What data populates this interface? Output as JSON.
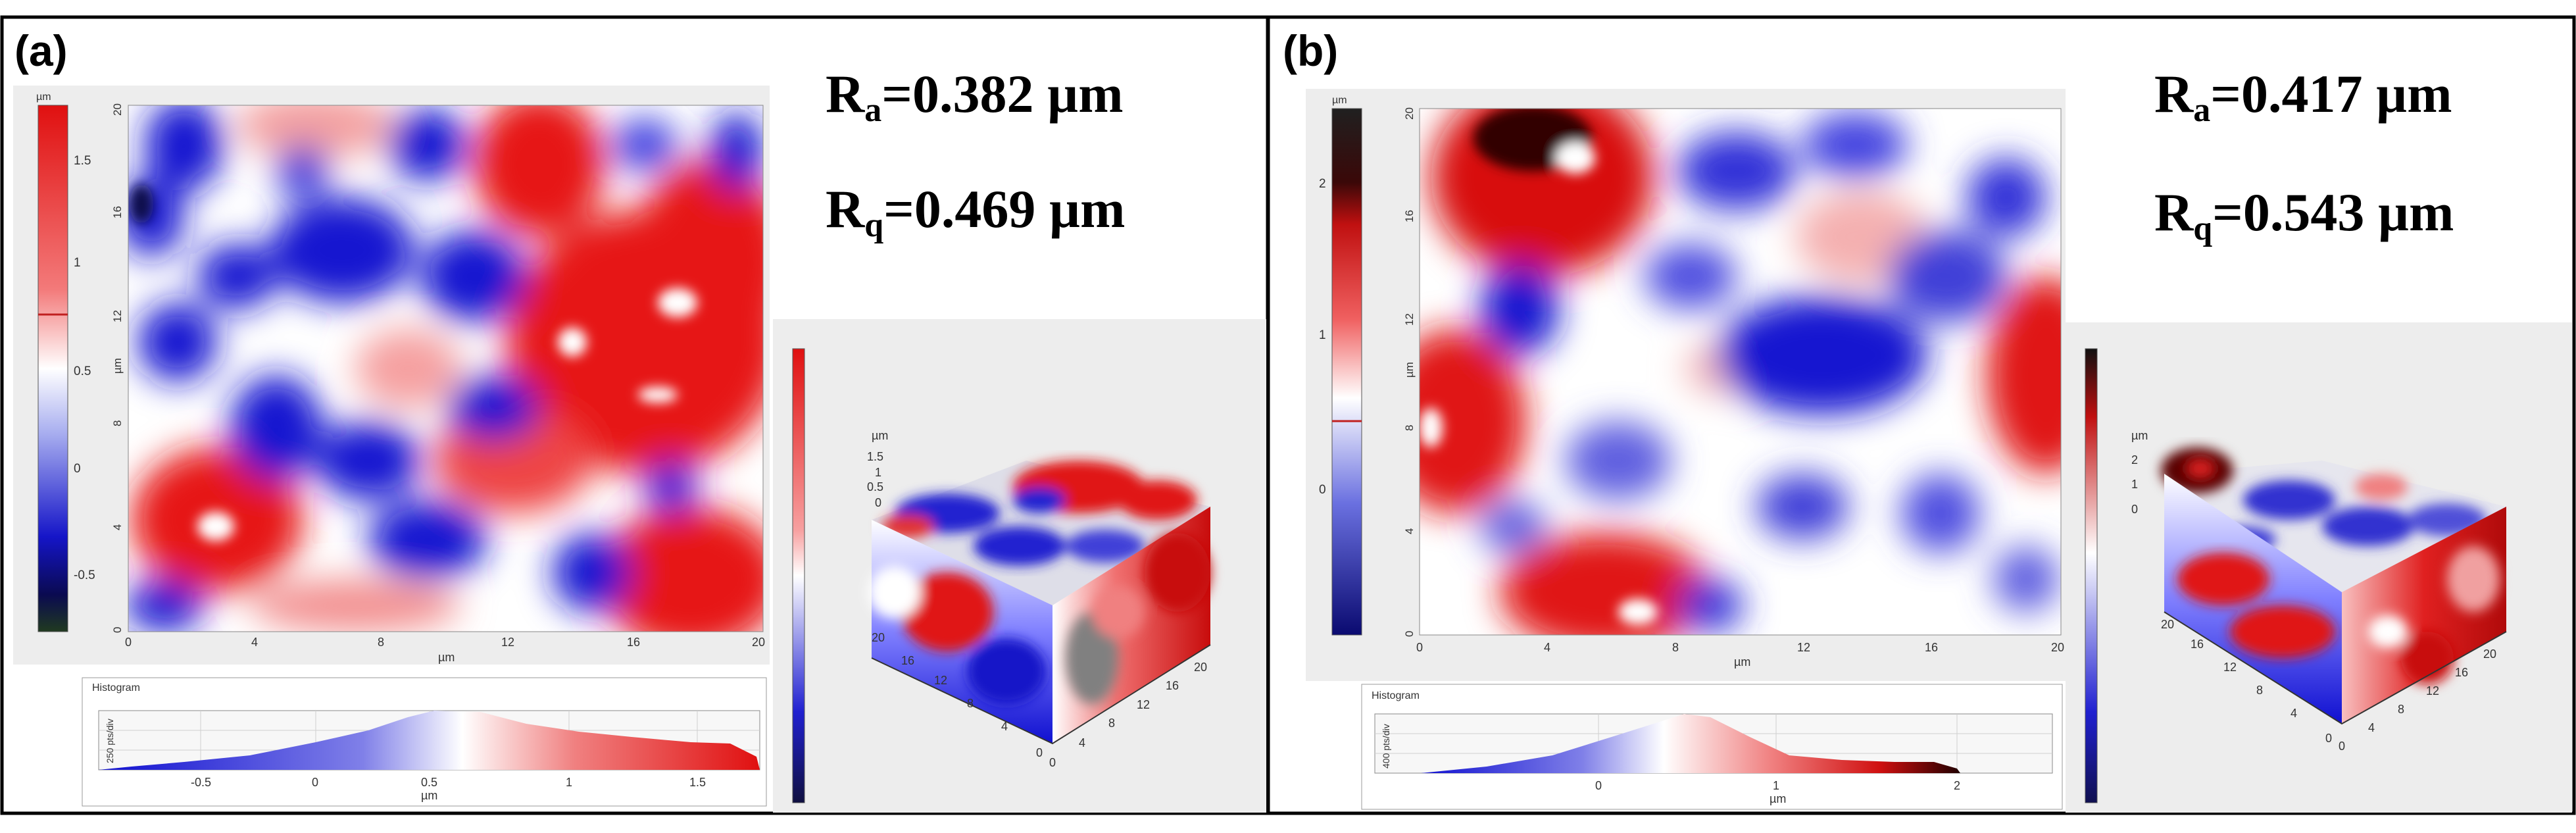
{
  "figure": {
    "panels": [
      {
        "id": "a",
        "label": "(a)",
        "ra_label": "R",
        "ra_sub": "a",
        "ra_value": "=0.382 µm",
        "rq_label": "R",
        "rq_sub": "q",
        "rq_value": "=0.469 µm",
        "colorbar_unit": "µm",
        "colorbar_ticks": [
          "1.5",
          "1",
          "0.5",
          "0",
          "-0.5"
        ],
        "x_axis_ticks": [
          "0",
          "4",
          "8",
          "12",
          "16",
          "20"
        ],
        "y_axis_ticks": [
          "0",
          "4",
          "8",
          "12",
          "16",
          "20"
        ],
        "axis_unit": "µm",
        "histogram_title": "Histogram",
        "histogram_ylabel": "250 pts/div",
        "histogram_ticks": [
          "-0.5",
          "0",
          "0.5",
          "1",
          "1.5"
        ],
        "histogram_unit": "µm",
        "view3d_unit": "µm",
        "view3d_z_ticks": [
          "1.5",
          "1",
          "0.5",
          "0"
        ],
        "view3d_x_ticks": [
          "0",
          "4",
          "8",
          "12",
          "16",
          "20"
        ],
        "view3d_y_ticks": [
          "0",
          "4",
          "8",
          "12",
          "16",
          "20"
        ]
      },
      {
        "id": "b",
        "label": "(b)",
        "ra_label": "R",
        "ra_sub": "a",
        "ra_value": "=0.417 µm",
        "rq_label": "R",
        "rq_sub": "q",
        "rq_value": "=0.543 µm",
        "colorbar_unit": "µm",
        "colorbar_ticks": [
          "2",
          "1",
          "0"
        ],
        "x_axis_ticks": [
          "0",
          "4",
          "8",
          "12",
          "16",
          "20"
        ],
        "y_axis_ticks": [
          "0",
          "4",
          "8",
          "12",
          "16",
          "20"
        ],
        "axis_unit": "µm",
        "histogram_title": "Histogram",
        "histogram_ylabel": "400 pts/div",
        "histogram_ticks": [
          "0",
          "1",
          "2"
        ],
        "histogram_unit": "µm",
        "view3d_unit": "µm",
        "view3d_z_ticks": [
          "2",
          "1",
          "0"
        ],
        "view3d_x_ticks": [
          "0",
          "4",
          "8",
          "12",
          "16",
          "20"
        ],
        "view3d_y_ticks": [
          "0",
          "4",
          "8",
          "12",
          "16",
          "20"
        ]
      }
    ],
    "colors": {
      "low": "#1010d0",
      "mid": "#ffffff",
      "high": "#e81010",
      "peak": "#200000",
      "panel_border": "#000000",
      "gray_bg": "#ededed"
    }
  }
}
